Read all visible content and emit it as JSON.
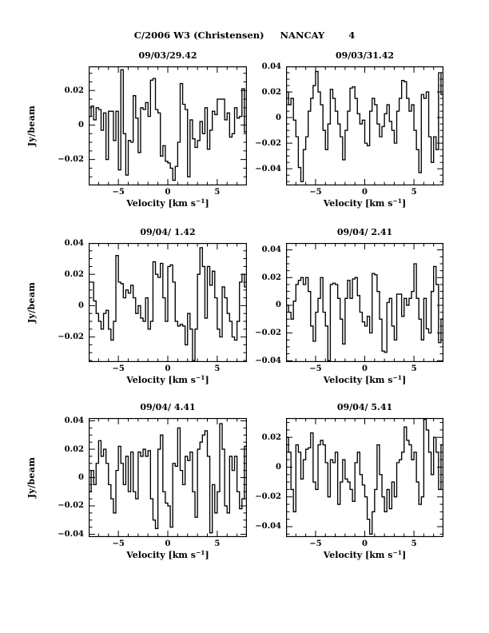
{
  "header": {
    "comet": "C/2006 W3 (Christensen)",
    "telescope": "NANCAY",
    "page_number": "4"
  },
  "axis": {
    "ylabel": "Jy/beam",
    "xlabel_prefix": "Velocity [km s",
    "xlabel_sup": "−1",
    "xlabel_suffix": "]"
  },
  "chart_data": [
    {
      "type": "line",
      "style": "histogram-step",
      "title": "09/03/29.42",
      "xlabel": "Velocity [km s-1]",
      "ylabel": "Jy/beam",
      "xlim": [
        -8,
        8
      ],
      "ylim": [
        -0.035,
        0.034
      ],
      "xticks_labeled": [
        -5,
        0,
        5
      ],
      "xtick_minor_step": 1,
      "yticks_labeled": [
        0.02,
        0,
        -0.02
      ],
      "ytick_minor_step": 0.005,
      "x_start": -8,
      "x_step": 0.25,
      "values": [
        0.005,
        0.011,
        0.003,
        0.01,
        0.009,
        -0.003,
        0.007,
        -0.02,
        0.008,
        0.008,
        -0.009,
        0.008,
        -0.026,
        0.032,
        -0.005,
        -0.029,
        -0.009,
        -0.01,
        0.017,
        0.004,
        -0.016,
        0.01,
        0.009,
        0.013,
        0.005,
        0.026,
        0.027,
        0.009,
        0.007,
        -0.018,
        -0.012,
        -0.021,
        -0.022,
        -0.025,
        -0.032,
        -0.024,
        -0.01,
        0.024,
        0.012,
        0.009,
        -0.03,
        0.003,
        -0.008,
        -0.013,
        -0.009,
        0.002,
        -0.005,
        0.01,
        -0.014,
        -0.003,
        0.008,
        0.006,
        0.015,
        0.015,
        0.015,
        0.003,
        0.007,
        -0.007,
        -0.005,
        0.01,
        0.004,
        0.005,
        0.021,
        -0.004
      ]
    },
    {
      "type": "line",
      "style": "histogram-step",
      "title": "09/03/31.42",
      "xlabel": "Velocity [km s-1]",
      "ylabel": "",
      "xlim": [
        -8,
        8
      ],
      "ylim": [
        -0.053,
        0.04
      ],
      "xticks_labeled": [
        -5,
        0,
        5
      ],
      "xtick_minor_step": 1,
      "yticks_labeled": [
        0.04,
        0.02,
        0,
        -0.02,
        -0.04
      ],
      "ytick_minor_step": 0.005,
      "x_start": -8,
      "x_step": 0.25,
      "values": [
        0.02,
        0.01,
        0.015,
        -0.002,
        -0.015,
        -0.039,
        -0.05,
        -0.025,
        -0.015,
        0.005,
        0.015,
        0.025,
        0.036,
        0.02,
        0.01,
        -0.01,
        -0.025,
        -0.005,
        0.022,
        0.015,
        0.005,
        -0.005,
        -0.015,
        -0.033,
        -0.01,
        0.005,
        0.023,
        0.024,
        0.015,
        0.003,
        -0.005,
        -0.002,
        -0.02,
        -0.022,
        0.005,
        0.015,
        0.01,
        -0.005,
        -0.015,
        -0.007,
        0.003,
        0.01,
        -0.003,
        -0.01,
        -0.02,
        0.005,
        0.015,
        0.029,
        0.028,
        0.015,
        0.005,
        0.01,
        -0.01,
        -0.025,
        -0.043,
        0.018,
        0.015,
        0.02,
        -0.015,
        -0.035,
        -0.015,
        -0.025,
        0.035,
        0.018
      ]
    },
    {
      "type": "line",
      "style": "histogram-step",
      "title": "09/04/ 1.42",
      "xlabel": "Velocity [km s-1]",
      "ylabel": "Jy/beam",
      "xlim": [
        -8,
        8
      ],
      "ylim": [
        -0.036,
        0.04
      ],
      "xticks_labeled": [
        -5,
        0,
        5
      ],
      "xtick_minor_step": 1,
      "yticks_labeled": [
        0.04,
        0.02,
        0,
        -0.02
      ],
      "ytick_minor_step": 0.005,
      "x_start": -8,
      "x_step": 0.25,
      "values": [
        0.015,
        0.015,
        0.003,
        -0.005,
        -0.01,
        -0.015,
        -0.005,
        -0.003,
        -0.015,
        -0.022,
        -0.01,
        0.032,
        0.015,
        0.014,
        0.005,
        0.01,
        0.008,
        0.013,
        0.005,
        -0.005,
        0.0,
        -0.008,
        -0.01,
        0.005,
        -0.015,
        -0.01,
        0.028,
        0.02,
        0.018,
        0.027,
        0.005,
        -0.01,
        0.025,
        0.026,
        0.015,
        -0.01,
        -0.013,
        -0.012,
        -0.013,
        -0.025,
        -0.005,
        -0.015,
        -0.035,
        -0.015,
        0.02,
        0.037,
        0.025,
        -0.008,
        0.025,
        0.013,
        0.022,
        0.005,
        -0.015,
        -0.02,
        0.012,
        0.005,
        -0.005,
        -0.01,
        -0.02,
        -0.022,
        -0.01,
        0.015,
        0.02,
        0.012
      ]
    },
    {
      "type": "line",
      "style": "histogram-step",
      "title": "09/04/ 2.41",
      "xlabel": "Velocity [km s-1]",
      "ylabel": "",
      "xlim": [
        -8,
        8
      ],
      "ylim": [
        -0.041,
        0.045
      ],
      "xticks_labeled": [
        -5,
        0,
        5
      ],
      "xtick_minor_step": 1,
      "yticks_labeled": [
        0.04,
        0.02,
        0,
        -0.02,
        -0.04
      ],
      "ytick_minor_step": 0.005,
      "x_start": -8,
      "x_step": 0.25,
      "values": [
        0.0,
        -0.005,
        -0.01,
        0.003,
        0.015,
        0.018,
        0.02,
        0.015,
        0.02,
        0.01,
        -0.015,
        -0.026,
        -0.005,
        0.005,
        0.02,
        -0.005,
        -0.015,
        -0.04,
        0.015,
        0.016,
        0.015,
        0.005,
        -0.01,
        -0.028,
        0.005,
        0.018,
        0.005,
        0.019,
        0.02,
        0.007,
        -0.005,
        -0.012,
        -0.015,
        -0.008,
        -0.02,
        0.023,
        0.022,
        0.01,
        -0.01,
        -0.033,
        -0.034,
        0.002,
        0.005,
        -0.015,
        -0.025,
        0.008,
        0.008,
        -0.008,
        0.005,
        0.0,
        0.005,
        0.01,
        0.03,
        0.005,
        -0.01,
        -0.025,
        0.005,
        -0.017,
        -0.02,
        0.01,
        0.028,
        0.015,
        -0.027,
        -0.01
      ]
    },
    {
      "type": "line",
      "style": "histogram-step",
      "title": "09/04/ 4.41",
      "xlabel": "Velocity [km s-1]",
      "ylabel": "Jy/beam",
      "xlim": [
        -8,
        8
      ],
      "ylim": [
        -0.042,
        0.042
      ],
      "xticks_labeled": [
        -5,
        0,
        5
      ],
      "xtick_minor_step": 1,
      "yticks_labeled": [
        0.04,
        0.02,
        0,
        -0.02,
        -0.04
      ],
      "ytick_minor_step": 0.005,
      "x_start": -8,
      "x_step": 0.25,
      "values": [
        -0.01,
        0.005,
        -0.005,
        0.01,
        0.026,
        0.015,
        0.02,
        0.01,
        -0.005,
        -0.015,
        -0.025,
        0.005,
        0.022,
        0.01,
        -0.005,
        0.015,
        -0.01,
        0.018,
        -0.01,
        -0.015,
        0.018,
        0.015,
        0.02,
        0.015,
        0.019,
        -0.015,
        -0.03,
        -0.036,
        0.02,
        0.03,
        -0.01,
        -0.018,
        -0.02,
        -0.035,
        0.01,
        0.008,
        0.035,
        0.005,
        -0.005,
        0.015,
        0.012,
        0.018,
        -0.01,
        -0.028,
        0.02,
        0.025,
        0.03,
        0.033,
        0.015,
        -0.039,
        -0.005,
        -0.025,
        -0.01,
        0.038,
        0.02,
        -0.02,
        -0.025,
        0.015,
        0.005,
        0.015,
        -0.01,
        -0.022,
        -0.015,
        0.022
      ]
    },
    {
      "type": "line",
      "style": "histogram-step",
      "title": "09/04/ 5.41",
      "xlabel": "Velocity [km s-1]",
      "ylabel": "",
      "xlim": [
        -8,
        8
      ],
      "ylim": [
        -0.047,
        0.033
      ],
      "xticks_labeled": [
        -5,
        0,
        5
      ],
      "xtick_minor_step": 1,
      "yticks_labeled": [
        0.02,
        0,
        -0.02,
        -0.04
      ],
      "ytick_minor_step": 0.005,
      "x_start": -8,
      "x_step": 0.25,
      "values": [
        0.02,
        0.01,
        -0.015,
        -0.03,
        0.015,
        0.01,
        -0.008,
        0.005,
        0.012,
        0.013,
        0.023,
        -0.01,
        -0.015,
        0.015,
        0.018,
        0.015,
        0.003,
        -0.02,
        0.005,
        0.003,
        0.01,
        -0.025,
        -0.01,
        0.005,
        -0.008,
        -0.01,
        -0.015,
        -0.023,
        0.003,
        0.01,
        -0.005,
        -0.012,
        -0.02,
        -0.035,
        -0.045,
        -0.03,
        -0.015,
        0.015,
        -0.005,
        -0.02,
        -0.03,
        -0.015,
        -0.028,
        -0.01,
        -0.02,
        0.003,
        0.005,
        0.01,
        0.027,
        0.018,
        0.015,
        0.005,
        0.01,
        -0.01,
        -0.025,
        -0.02,
        0.032,
        0.025,
        0.01,
        -0.005,
        0.02,
        0.01,
        -0.015,
        0.015
      ]
    }
  ]
}
